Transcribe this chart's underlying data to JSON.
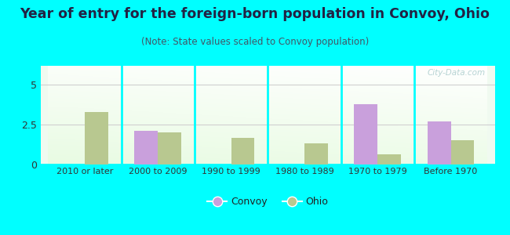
{
  "categories": [
    "2010 or later",
    "2000 to 2009",
    "1990 to 1999",
    "1980 to 1989",
    "1970 to 1979",
    "Before 1970"
  ],
  "convoy_values": [
    0,
    2.1,
    0,
    0,
    3.8,
    2.7
  ],
  "ohio_values": [
    3.3,
    2.0,
    1.65,
    1.35,
    0.65,
    1.55
  ],
  "convoy_color": "#c9a0dc",
  "ohio_color": "#b8c890",
  "title": "Year of entry for the foreign-born population in Convoy, Ohio",
  "subtitle": "(Note: State values scaled to Convoy population)",
  "ylim": [
    0,
    6.2
  ],
  "yticks": [
    0,
    2.5,
    5
  ],
  "bar_width": 0.32,
  "outer_bg": "#00ffff",
  "plot_bg_color": "#e8f5e2",
  "legend_convoy": "Convoy",
  "legend_ohio": "Ohio",
  "title_fontsize": 12.5,
  "subtitle_fontsize": 8.5,
  "watermark": "City-Data.com",
  "grid_color": "#d0d0d0",
  "divider_color": "#00ffff",
  "tick_label_fontsize": 8.0
}
